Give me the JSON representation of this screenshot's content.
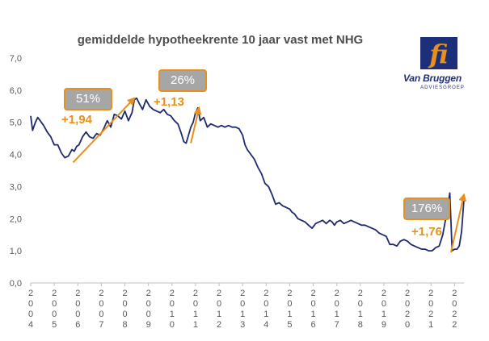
{
  "chart_data": {
    "type": "line",
    "title": "gemiddelde hypotheekrente 10 jaar vast met NHG",
    "xlabel": "",
    "ylabel": "",
    "ylim": [
      0,
      7
    ],
    "yticks": [
      "0,0",
      "1,0",
      "2,0",
      "3,0",
      "4,0",
      "5,0",
      "6,0",
      "7,0"
    ],
    "xticks": [
      "2004",
      "2005",
      "2006",
      "2007",
      "2008",
      "2009",
      "2010",
      "2011",
      "2012",
      "2013",
      "2014",
      "2015",
      "2016",
      "2017",
      "2018",
      "2019",
      "2020",
      "2021",
      "2022"
    ],
    "grid": false,
    "series": [
      {
        "color": "#1f2a6e",
        "x": [
          2004.0,
          2004.08,
          2004.2,
          2004.3,
          2004.4,
          2004.55,
          2004.7,
          2004.85,
          2005.0,
          2005.15,
          2005.3,
          2005.45,
          2005.6,
          2005.75,
          2005.85,
          2005.95,
          2006.05,
          2006.2,
          2006.35,
          2006.5,
          2006.65,
          2006.8,
          2006.95,
          2007.1,
          2007.25,
          2007.4,
          2007.55,
          2007.7,
          2007.85,
          2008.0,
          2008.15,
          2008.3,
          2008.4,
          2008.5,
          2008.6,
          2008.75,
          2008.9,
          2009.05,
          2009.2,
          2009.35,
          2009.5,
          2009.65,
          2009.8,
          2009.95,
          2010.1,
          2010.25,
          2010.4,
          2010.5,
          2010.6,
          2010.7,
          2010.8,
          2010.9,
          2011.0,
          2011.1,
          2011.2,
          2011.35,
          2011.5,
          2011.65,
          2011.8,
          2011.95,
          2012.1,
          2012.25,
          2012.4,
          2012.55,
          2012.7,
          2012.85,
          2013.0,
          2013.1,
          2013.2,
          2013.35,
          2013.5,
          2013.65,
          2013.8,
          2013.95,
          2014.1,
          2014.25,
          2014.4,
          2014.55,
          2014.7,
          2014.85,
          2015.0,
          2015.1,
          2015.2,
          2015.35,
          2015.5,
          2015.65,
          2015.8,
          2015.95,
          2016.1,
          2016.25,
          2016.4,
          2016.55,
          2016.7,
          2016.8,
          2016.9,
          2017.0,
          2017.15,
          2017.3,
          2017.45,
          2017.6,
          2017.75,
          2017.9,
          2018.05,
          2018.2,
          2018.35,
          2018.5,
          2018.65,
          2018.8,
          2018.95,
          2019.1,
          2019.25,
          2019.4,
          2019.55,
          2019.7,
          2019.85,
          2020.0,
          2020.15,
          2020.3,
          2020.45,
          2020.6,
          2020.75,
          2020.9,
          2021.05,
          2021.2,
          2021.35,
          2021.5,
          2021.65,
          2021.8,
          2021.9,
          2022.0,
          2022.1,
          2022.2,
          2022.3,
          2022.4
        ],
        "values": [
          5.2,
          4.75,
          5.0,
          5.15,
          5.05,
          4.9,
          4.7,
          4.55,
          4.3,
          4.3,
          4.05,
          3.9,
          3.95,
          4.15,
          4.1,
          4.25,
          4.3,
          4.55,
          4.7,
          4.55,
          4.5,
          4.65,
          4.6,
          4.8,
          5.05,
          4.85,
          5.25,
          5.2,
          5.1,
          5.35,
          5.05,
          5.3,
          5.7,
          5.75,
          5.6,
          5.4,
          5.7,
          5.5,
          5.4,
          5.35,
          5.3,
          5.4,
          5.25,
          5.2,
          5.05,
          4.95,
          4.65,
          4.4,
          4.35,
          4.6,
          4.85,
          5.0,
          5.3,
          5.45,
          5.05,
          5.15,
          4.85,
          4.95,
          4.9,
          4.85,
          4.9,
          4.85,
          4.9,
          4.85,
          4.85,
          4.8,
          4.6,
          4.3,
          4.15,
          4.0,
          3.85,
          3.6,
          3.4,
          3.1,
          3.0,
          2.75,
          2.45,
          2.5,
          2.4,
          2.35,
          2.3,
          2.2,
          2.15,
          2.0,
          1.95,
          1.9,
          1.8,
          1.7,
          1.85,
          1.9,
          1.95,
          1.85,
          1.95,
          1.9,
          1.8,
          1.9,
          1.95,
          1.85,
          1.9,
          1.95,
          1.9,
          1.85,
          1.8,
          1.8,
          1.75,
          1.7,
          1.65,
          1.55,
          1.5,
          1.45,
          1.2,
          1.2,
          1.15,
          1.3,
          1.35,
          1.3,
          1.2,
          1.15,
          1.1,
          1.05,
          1.05,
          1.0,
          1.0,
          1.1,
          1.15,
          1.5,
          2.1,
          2.8,
          1.0,
          1.05,
          1.05,
          1.15,
          1.6,
          2.6
        ]
      }
    ],
    "annotations": [
      {
        "box": "51%",
        "change": "+1,94",
        "arrow_from": [
          2005.8,
          3.75
        ],
        "arrow_to": [
          2008.4,
          5.75
        ]
      },
      {
        "box": "26%",
        "change": "+1,13",
        "arrow_from": [
          2010.8,
          4.35
        ],
        "arrow_to": [
          2011.15,
          5.45
        ]
      },
      {
        "box": "176%",
        "change": "+1,76",
        "arrow_from": [
          2021.85,
          0.95
        ],
        "arrow_to": [
          2022.4,
          2.75
        ]
      }
    ]
  },
  "logo": {
    "name": "Van Bruggen",
    "sub": "ADVIESGROEP",
    "bg_color": "#1e2f7a",
    "accent_color": "#e8901a"
  }
}
